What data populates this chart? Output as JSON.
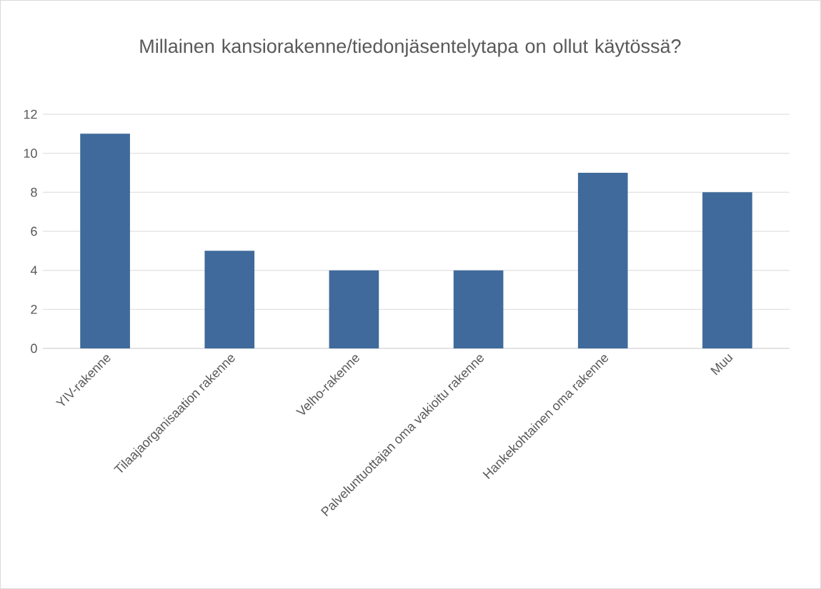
{
  "chart_data": {
    "type": "bar",
    "title": "Millainen kansiorakenne/tiedonjäsentelytapa on ollut käytössä?",
    "categories": [
      "YIV-rakenne",
      "Tilaajaorganisaation rakenne",
      "Velho-rakenne",
      "Palveluntuottajan oma vakioitu rakenne",
      "Hankekohtainen oma rakenne",
      "Muu"
    ],
    "values": [
      11,
      5,
      4,
      4,
      9,
      8
    ],
    "color": "#3f6a9b",
    "ylim": [
      0,
      12
    ],
    "yticks": [
      0,
      2,
      4,
      6,
      8,
      10,
      12
    ],
    "grid": "y"
  }
}
